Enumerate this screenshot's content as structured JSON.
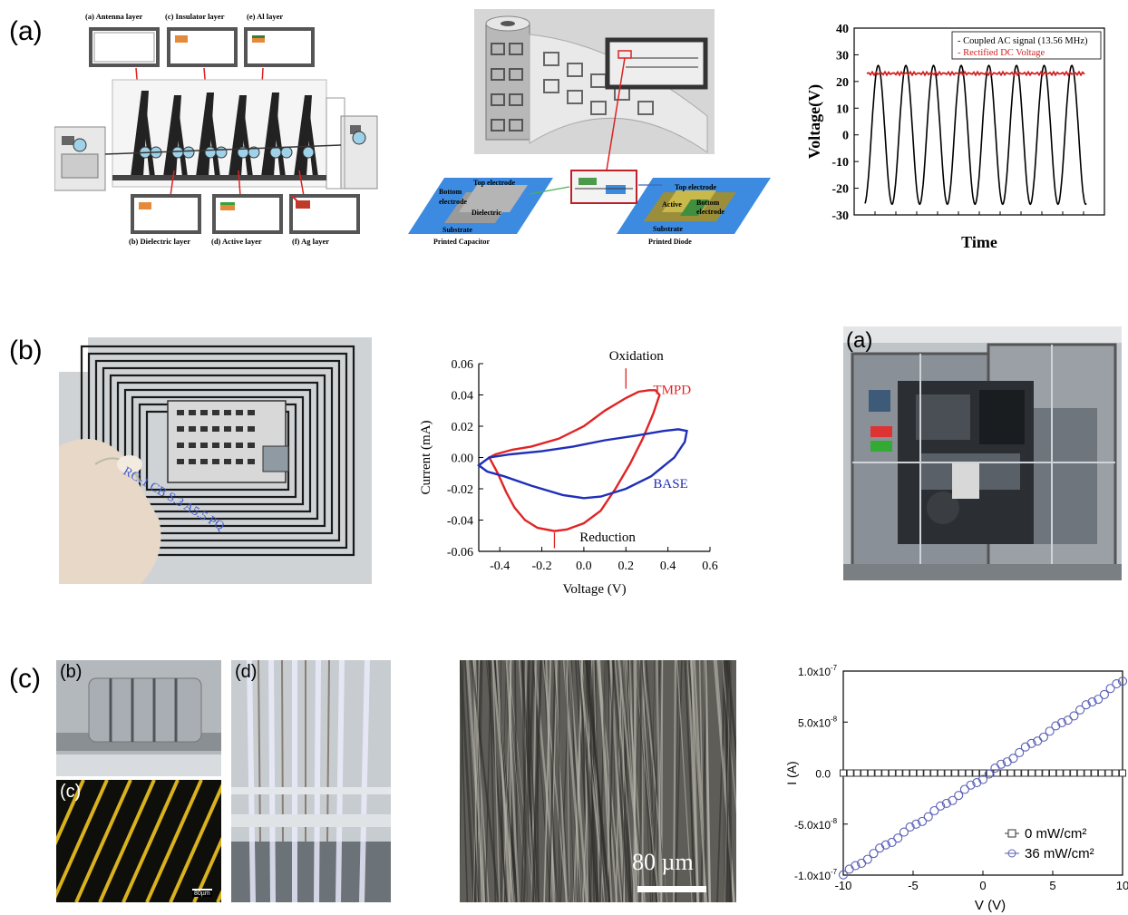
{
  "row_labels": [
    "(a)",
    "(b)",
    "(c)"
  ],
  "a1": {
    "top_labels": [
      "(a) Antenna layer",
      "(c) Insulator layer",
      "(e) Al layer"
    ],
    "bottom_labels": [
      "(b) Dielectric layer",
      "(d) Active layer",
      "(f) Ag layer"
    ]
  },
  "a2": {
    "capacitor": {
      "top": "Top electrode",
      "bottom": "Bottom electrode",
      "dielectric": "Dielectric",
      "substrate": "Substrate",
      "caption": "Printed Capacitor"
    },
    "diode": {
      "top": "Top electrode",
      "active": "Active",
      "bottom": "Bottom electrode",
      "substrate": "Substrate",
      "caption": "Printed Diode"
    }
  },
  "b3_label": "(a)",
  "c1_labels": [
    "(b)",
    "(c)",
    "(d)"
  ],
  "c1_scale": "80µm",
  "c2_scale": "80 µm",
  "chart_data": [
    {
      "type": "line",
      "xlabel": "Time",
      "ylabel": "Voltage(V)",
      "ylim": [
        -30,
        40
      ],
      "yticks": [
        "40",
        "30",
        "20",
        "10",
        "0",
        "-10",
        "-20",
        "-30"
      ],
      "series": [
        {
          "name": "Coupled AC signal (13.56 MHz)",
          "color": "#000000",
          "amplitude": 26,
          "cycles": 8
        },
        {
          "name": "Rectified DC Voltage",
          "color": "#d22020",
          "value": 23
        }
      ],
      "legend": "top-right"
    },
    {
      "type": "line",
      "xlabel": "Voltage (V)",
      "ylabel": "Current (mA)",
      "xlim": [
        -0.5,
        0.6
      ],
      "ylim": [
        -0.06,
        0.06
      ],
      "xticks": [
        "-0.4",
        "-0.2",
        "0.0",
        "0.2",
        "0.4",
        "0.6"
      ],
      "yticks": [
        "0.06",
        "0.04",
        "0.02",
        "0.00",
        "-0.02",
        "-0.04",
        "-0.06"
      ],
      "annotations": [
        "Oxidation",
        "Reduction"
      ],
      "series": [
        {
          "name": "TMPD",
          "color": "#e02424",
          "x": [
            -0.45,
            -0.42,
            -0.34,
            -0.25,
            -0.12,
            0.0,
            0.1,
            0.2,
            0.26,
            0.31,
            0.34,
            0.36,
            0.33,
            0.28,
            0.22,
            0.15,
            0.08,
            0.0,
            -0.08,
            -0.14,
            -0.22,
            -0.28,
            -0.33,
            -0.37,
            -0.41,
            -0.45
          ],
          "y": [
            0.0,
            0.002,
            0.005,
            0.007,
            0.012,
            0.02,
            0.03,
            0.038,
            0.042,
            0.043,
            0.043,
            0.04,
            0.028,
            0.012,
            -0.004,
            -0.02,
            -0.034,
            -0.042,
            -0.046,
            -0.047,
            -0.045,
            -0.04,
            -0.032,
            -0.022,
            -0.01,
            0.0
          ]
        },
        {
          "name": "BASE",
          "color": "#1f2fb8",
          "x": [
            -0.5,
            -0.45,
            -0.35,
            -0.2,
            -0.05,
            0.1,
            0.25,
            0.38,
            0.45,
            0.49,
            0.48,
            0.43,
            0.32,
            0.2,
            0.08,
            0.0,
            -0.1,
            -0.25,
            -0.38,
            -0.46,
            -0.5
          ],
          "y": [
            -0.005,
            0.0,
            0.002,
            0.004,
            0.007,
            0.011,
            0.014,
            0.017,
            0.018,
            0.017,
            0.01,
            0.0,
            -0.012,
            -0.02,
            -0.025,
            -0.026,
            -0.024,
            -0.018,
            -0.012,
            -0.009,
            -0.005
          ]
        }
      ]
    },
    {
      "type": "scatter",
      "xlabel": "V (V)",
      "ylabel": "I (A)",
      "xlim": [
        -10,
        10
      ],
      "ylim": [
        -1e-07,
        1e-07
      ],
      "xticks": [
        "-10",
        "-5",
        "0",
        "5",
        "10"
      ],
      "yticks": [
        "1.0x10",
        "5.0x10",
        "0.0",
        "-5.0x10",
        "-1.0x10"
      ],
      "ytick_exponents": [
        "-7",
        "-8",
        "",
        "-8",
        "-7"
      ],
      "legend": "bottom-right",
      "series": [
        {
          "name": "0 mW/cm²",
          "marker": "square",
          "color": "#333333",
          "slope": 0
        },
        {
          "name": "36 mW/cm²",
          "marker": "circle",
          "color": "#5a5fb5",
          "slope": 9.5e-09,
          "offset": -0.5
        }
      ]
    }
  ]
}
